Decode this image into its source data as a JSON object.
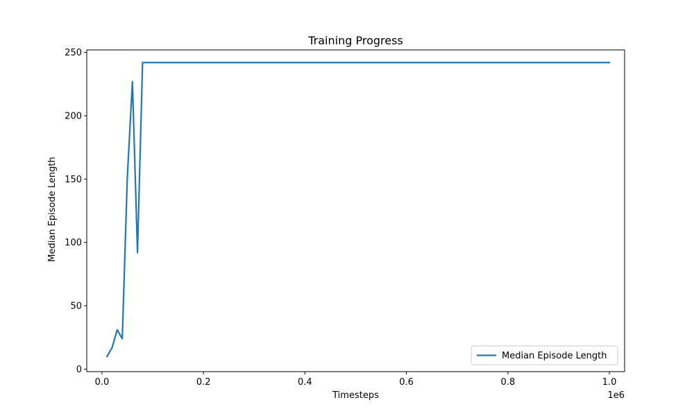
{
  "chart_data": {
    "type": "line",
    "title": "Training Progress",
    "xlabel": "Timesteps",
    "ylabel": "Median Episode Length",
    "x_offset_label": "1e6",
    "xlim": [
      -0.03,
      1.03
    ],
    "ylim": [
      -2,
      252
    ],
    "x_ticks": [
      0.0,
      0.2,
      0.4,
      0.6,
      0.8,
      1.0
    ],
    "x_tick_labels": [
      "0.0",
      "0.2",
      "0.4",
      "0.6",
      "0.8",
      "1.0"
    ],
    "y_ticks": [
      0,
      50,
      100,
      150,
      200,
      250
    ],
    "y_tick_labels": [
      "0",
      "50",
      "100",
      "150",
      "200",
      "250"
    ],
    "grid": false,
    "legend_position": "lower-right",
    "series": [
      {
        "name": "Median Episode Length",
        "color": "#1f77b4",
        "x": [
          0.01,
          0.02,
          0.03,
          0.04,
          0.05,
          0.06,
          0.07,
          0.08,
          0.09,
          0.1,
          0.2,
          0.3,
          0.4,
          0.5,
          0.6,
          0.7,
          0.8,
          0.9,
          1.0
        ],
        "y": [
          10,
          17,
          31,
          24,
          152,
          227,
          92,
          242,
          242,
          242,
          242,
          242,
          242,
          242,
          242,
          242,
          242,
          242,
          242
        ]
      }
    ]
  }
}
